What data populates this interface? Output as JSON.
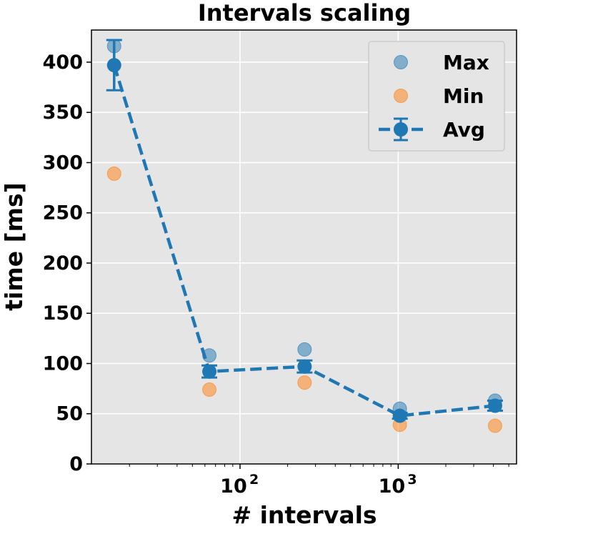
{
  "chart_data": {
    "type": "scatter",
    "title": "Intervals scaling",
    "xlabel": "# intervals",
    "ylabel": "time [ms]",
    "xscale": "log",
    "xlim": [
      11.5,
      5600
    ],
    "ylim": [
      0,
      432
    ],
    "grid": true,
    "legend_position": "top-right",
    "x": [
      16,
      64,
      256,
      1024,
      4096
    ],
    "y_ticks": [
      0,
      50,
      100,
      150,
      200,
      250,
      300,
      350,
      400
    ],
    "y_tick_labels": [
      "0",
      "50",
      "100",
      "150",
      "200",
      "250",
      "300",
      "350",
      "400"
    ],
    "x_major_ticks": [
      100,
      1000
    ],
    "x_tick_labels": [
      {
        "base": "10",
        "exp": "2"
      },
      {
        "base": "10",
        "exp": "3"
      }
    ],
    "series": [
      {
        "name": "Max",
        "style": "marker",
        "color": "#1f77b4",
        "alpha": 0.5,
        "values": [
          416,
          108,
          114,
          55,
          63
        ]
      },
      {
        "name": "Min",
        "style": "marker",
        "color": "#ff7f0e",
        "alpha": 0.5,
        "values": [
          289,
          74,
          81,
          39,
          38
        ]
      },
      {
        "name": "Avg",
        "style": "dashed-line-errorbar",
        "color": "#1f77b4",
        "alpha": 1.0,
        "values": [
          397,
          92,
          97,
          48,
          58
        ],
        "error": [
          25,
          6,
          6,
          3,
          5
        ]
      }
    ]
  }
}
